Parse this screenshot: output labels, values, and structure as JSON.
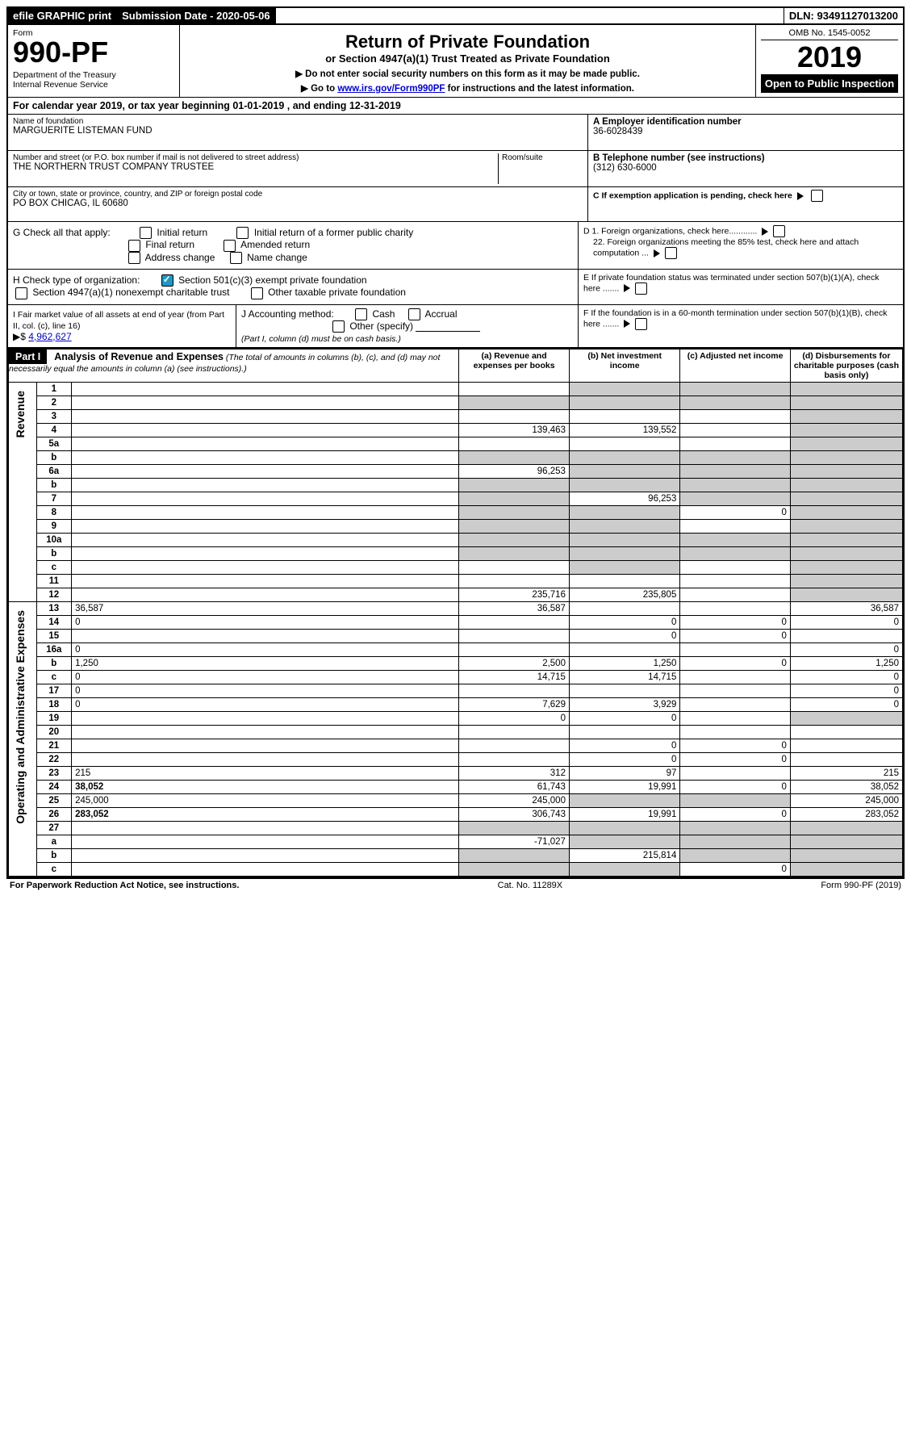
{
  "top_bar": {
    "efile": "efile GRAPHIC print",
    "submission_label": "Submission Date - 2020-05-06",
    "dln": "DLN: 93491127013200"
  },
  "header": {
    "form_label": "Form",
    "form_number": "990-PF",
    "dept": "Department of the Treasury",
    "irs": "Internal Revenue Service",
    "title": "Return of Private Foundation",
    "subtitle": "or Section 4947(a)(1) Trust Treated as Private Foundation",
    "bullet1": "▶ Do not enter social security numbers on this form as it may be made public.",
    "bullet2_pre": "▶ Go to ",
    "bullet2_link": "www.irs.gov/Form990PF",
    "bullet2_post": " for instructions and the latest information.",
    "omb": "OMB No. 1545-0052",
    "year": "2019",
    "open": "Open to Public Inspection"
  },
  "cal_year": "For calendar year 2019, or tax year beginning 01-01-2019                              , and ending 12-31-2019",
  "info": {
    "name_label": "Name of foundation",
    "name": "MARGUERITE LISTEMAN FUND",
    "addr_label": "Number and street (or P.O. box number if mail is not delivered to street address)",
    "addr": "THE NORTHERN TRUST COMPANY TRUSTEE",
    "room_label": "Room/suite",
    "city_label": "City or town, state or province, country, and ZIP or foreign postal code",
    "city": "PO BOX CHICAG, IL  60680",
    "ein_label": "A Employer identification number",
    "ein": "36-6028439",
    "phone_label": "B Telephone number (see instructions)",
    "phone": "(312) 630-6000",
    "c_label": "C If exemption application is pending, check here",
    "d1_label": "D 1. Foreign organizations, check here............",
    "d2_label": "2. Foreign organizations meeting the 85% test, check here and attach computation ...",
    "e_label": "E  If private foundation status was terminated under section 507(b)(1)(A), check here .......",
    "f_label": "F  If the foundation is in a 60-month termination under section 507(b)(1)(B), check here ......."
  },
  "g_row": {
    "label": "G Check all that apply:",
    "opts": [
      "Initial return",
      "Initial return of a former public charity",
      "Final return",
      "Amended return",
      "Address change",
      "Name change"
    ]
  },
  "h_row": {
    "label": "H Check type of organization:",
    "opt1": "Section 501(c)(3) exempt private foundation",
    "opt2": "Section 4947(a)(1) nonexempt charitable trust",
    "opt3": "Other taxable private foundation"
  },
  "i_row": {
    "label": "I Fair market value of all assets at end of year (from Part II, col. (c), line 16)",
    "value_prefix": "▶$ ",
    "value": "4,962,627"
  },
  "j_row": {
    "label": "J Accounting method:",
    "opts": [
      "Cash",
      "Accrual"
    ],
    "other": "Other (specify)",
    "note": "(Part I, column (d) must be on cash basis.)"
  },
  "part1": {
    "tag": "Part I",
    "title": "Analysis of Revenue and Expenses",
    "note": "(The total of amounts in columns (b), (c), and (d) may not necessarily equal the amounts in column (a) (see instructions).)",
    "col_a": "(a)   Revenue and expenses per books",
    "col_b": "(b)  Net investment income",
    "col_c": "(c)  Adjusted net income",
    "col_d": "(d)  Disbursements for charitable purposes (cash basis only)"
  },
  "revenue_label": "Revenue",
  "expenses_label": "Operating and Administrative Expenses",
  "rows": {
    "r1": {
      "n": "1",
      "d": "",
      "a": "",
      "b": "",
      "c": "",
      "gB": 1,
      "gC": 1,
      "gD": 1
    },
    "r2": {
      "n": "2",
      "d": "",
      "a": "",
      "b": "",
      "c": "",
      "gA": 1,
      "gB": 1,
      "gC": 1,
      "gD": 1
    },
    "r3": {
      "n": "3",
      "d": "",
      "a": "",
      "b": "",
      "c": "",
      "gD": 1
    },
    "r4": {
      "n": "4",
      "d": "",
      "a": "139,463",
      "b": "139,552",
      "c": "",
      "gD": 1
    },
    "r5a": {
      "n": "5a",
      "d": "",
      "a": "",
      "b": "",
      "c": "",
      "gD": 1
    },
    "r5b": {
      "n": "b",
      "d": "",
      "a": "",
      "b": "",
      "c": "",
      "gA": 1,
      "gB": 1,
      "gC": 1,
      "gD": 1
    },
    "r6a": {
      "n": "6a",
      "d": "",
      "a": "96,253",
      "b": "",
      "c": "",
      "gB": 1,
      "gC": 1,
      "gD": 1
    },
    "r6b": {
      "n": "b",
      "d": "",
      "a": "",
      "b": "",
      "c": "",
      "gA": 1,
      "gB": 1,
      "gC": 1,
      "gD": 1
    },
    "r7": {
      "n": "7",
      "d": "",
      "a": "",
      "b": "96,253",
      "c": "",
      "gA": 1,
      "gC": 1,
      "gD": 1
    },
    "r8": {
      "n": "8",
      "d": "",
      "a": "",
      "b": "",
      "c": "0",
      "gA": 1,
      "gB": 1,
      "gD": 1
    },
    "r9": {
      "n": "9",
      "d": "",
      "a": "",
      "b": "",
      "c": "",
      "gA": 1,
      "gB": 1,
      "gD": 1
    },
    "r10a": {
      "n": "10a",
      "d": "",
      "a": "",
      "b": "",
      "c": "",
      "gA": 1,
      "gB": 1,
      "gC": 1,
      "gD": 1
    },
    "r10b": {
      "n": "b",
      "d": "",
      "a": "",
      "b": "",
      "c": "",
      "gA": 1,
      "gB": 1,
      "gC": 1,
      "gD": 1
    },
    "r10c": {
      "n": "c",
      "d": "",
      "a": "",
      "b": "",
      "c": "",
      "gB": 1,
      "gD": 1
    },
    "r11": {
      "n": "11",
      "d": "",
      "a": "",
      "b": "",
      "c": "",
      "gD": 1
    },
    "r12": {
      "n": "12",
      "d": "",
      "a": "235,716",
      "b": "235,805",
      "c": "",
      "gD": 1,
      "bold": 1
    },
    "r13": {
      "n": "13",
      "d": "36,587",
      "a": "36,587",
      "b": "",
      "c": ""
    },
    "r14": {
      "n": "14",
      "d": "0",
      "a": "",
      "b": "0",
      "c": "0"
    },
    "r15": {
      "n": "15",
      "d": "",
      "a": "",
      "b": "0",
      "c": "0"
    },
    "r16a": {
      "n": "16a",
      "d": "0",
      "a": "",
      "b": "",
      "c": ""
    },
    "r16b": {
      "n": "b",
      "d": "1,250",
      "a": "2,500",
      "b": "1,250",
      "c": "0"
    },
    "r16c": {
      "n": "c",
      "d": "0",
      "a": "14,715",
      "b": "14,715",
      "c": ""
    },
    "r17": {
      "n": "17",
      "d": "0",
      "a": "",
      "b": "",
      "c": ""
    },
    "r18": {
      "n": "18",
      "d": "0",
      "a": "7,629",
      "b": "3,929",
      "c": ""
    },
    "r19": {
      "n": "19",
      "d": "",
      "a": "0",
      "b": "0",
      "c": "",
      "gD": 1
    },
    "r20": {
      "n": "20",
      "d": "",
      "a": "",
      "b": "",
      "c": ""
    },
    "r21": {
      "n": "21",
      "d": "",
      "a": "",
      "b": "0",
      "c": "0"
    },
    "r22": {
      "n": "22",
      "d": "",
      "a": "",
      "b": "0",
      "c": "0"
    },
    "r23": {
      "n": "23",
      "d": "215",
      "a": "312",
      "b": "97",
      "c": ""
    },
    "r24": {
      "n": "24",
      "d": "38,052",
      "a": "61,743",
      "b": "19,991",
      "c": "0",
      "bold": 1
    },
    "r25": {
      "n": "25",
      "d": "245,000",
      "a": "245,000",
      "b": "",
      "c": "",
      "gB": 1,
      "gC": 1
    },
    "r26": {
      "n": "26",
      "d": "283,052",
      "a": "306,743",
      "b": "19,991",
      "c": "0",
      "bold": 1
    },
    "r27": {
      "n": "27",
      "d": "",
      "a": "",
      "b": "",
      "c": "",
      "gA": 1,
      "gB": 1,
      "gC": 1,
      "gD": 1
    },
    "r27a": {
      "n": "a",
      "d": "",
      "a": "-71,027",
      "b": "",
      "c": "",
      "gB": 1,
      "gC": 1,
      "gD": 1,
      "bold": 1
    },
    "r27b": {
      "n": "b",
      "d": "",
      "a": "",
      "b": "215,814",
      "c": "",
      "gA": 1,
      "gC": 1,
      "gD": 1,
      "bold": 1
    },
    "r27c": {
      "n": "c",
      "d": "",
      "a": "",
      "b": "",
      "c": "0",
      "gA": 1,
      "gB": 1,
      "gD": 1,
      "bold": 1
    }
  },
  "footer": {
    "left": "For Paperwork Reduction Act Notice, see instructions.",
    "center": "Cat. No. 11289X",
    "right": "Form 990-PF (2019)"
  }
}
